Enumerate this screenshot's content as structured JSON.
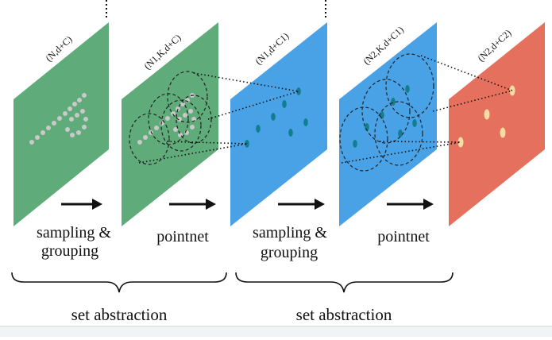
{
  "panels": [
    {
      "label": "(N,d+C)",
      "color": "#5fab79"
    },
    {
      "label": "(N1,K,d+C)",
      "color": "#5fab79"
    },
    {
      "label": "(N1,d+C1)",
      "color": "#4aa2e6"
    },
    {
      "label": "(N2,K,d+C1)",
      "color": "#4aa2e6"
    },
    {
      "label": "(N2,d+C2)",
      "color": "#e4705d"
    }
  ],
  "steps": [
    {
      "line1": "sampling &",
      "line2": "grouping"
    },
    {
      "line1": "pointnet",
      "line2": ""
    },
    {
      "line1": "sampling &",
      "line2": "grouping"
    },
    {
      "line1": "pointnet",
      "line2": ""
    }
  ],
  "groups": [
    "set abstraction",
    "set abstraction"
  ],
  "colors": {
    "gray_point": "#c9c9c9",
    "teal_point": "#117f8f",
    "cream_point": "#f7dca3",
    "arrow": "#111111",
    "dashed": "#222222"
  }
}
